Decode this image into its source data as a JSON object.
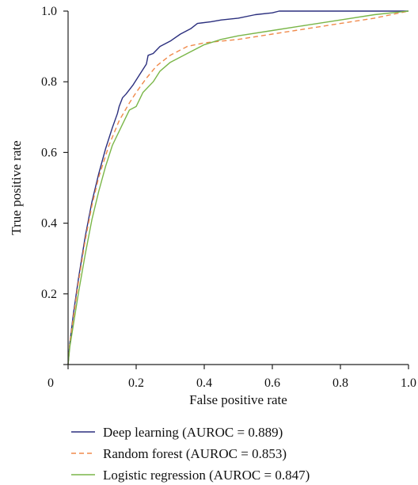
{
  "chart_data": {
    "type": "line",
    "title": "",
    "xlabel": "False positive rate",
    "ylabel": "True positive rate",
    "xlim": [
      0,
      1
    ],
    "ylim": [
      0,
      1
    ],
    "x_ticks": [
      0,
      0.2,
      0.4,
      0.6,
      0.8,
      1.0
    ],
    "x_tick_labels": [
      "0",
      "0.2",
      "0.4",
      "0.6",
      "0.8",
      "1.0"
    ],
    "y_ticks": [
      0.2,
      0.4,
      0.6,
      0.8,
      1.0
    ],
    "y_tick_labels": [
      "0.2",
      "0.4",
      "0.6",
      "0.8",
      "1.0"
    ],
    "grid": false,
    "legend_position": "bottom",
    "series": [
      {
        "name": "Deep learning (AUROC = 0.889)",
        "color": "#2b2f7e",
        "style": "solid",
        "points": [
          [
            0,
            0
          ],
          [
            0.005,
            0.06
          ],
          [
            0.015,
            0.14
          ],
          [
            0.03,
            0.24
          ],
          [
            0.05,
            0.36
          ],
          [
            0.07,
            0.46
          ],
          [
            0.09,
            0.54
          ],
          [
            0.11,
            0.61
          ],
          [
            0.13,
            0.67
          ],
          [
            0.145,
            0.71
          ],
          [
            0.15,
            0.73
          ],
          [
            0.16,
            0.755
          ],
          [
            0.17,
            0.765
          ],
          [
            0.19,
            0.79
          ],
          [
            0.21,
            0.82
          ],
          [
            0.23,
            0.85
          ],
          [
            0.235,
            0.875
          ],
          [
            0.25,
            0.88
          ],
          [
            0.27,
            0.9
          ],
          [
            0.3,
            0.915
          ],
          [
            0.33,
            0.935
          ],
          [
            0.36,
            0.95
          ],
          [
            0.38,
            0.965
          ],
          [
            0.42,
            0.97
          ],
          [
            0.45,
            0.975
          ],
          [
            0.5,
            0.98
          ],
          [
            0.55,
            0.99
          ],
          [
            0.6,
            0.995
          ],
          [
            0.62,
            1.0
          ],
          [
            0.8,
            1.0
          ],
          [
            1.0,
            1.0
          ]
        ]
      },
      {
        "name": "Random forest (AUROC = 0.853)",
        "color": "#f08a4b",
        "style": "dashed",
        "points": [
          [
            0,
            0
          ],
          [
            0.005,
            0.06
          ],
          [
            0.015,
            0.13
          ],
          [
            0.03,
            0.23
          ],
          [
            0.05,
            0.35
          ],
          [
            0.07,
            0.45
          ],
          [
            0.09,
            0.53
          ],
          [
            0.12,
            0.62
          ],
          [
            0.15,
            0.69
          ],
          [
            0.18,
            0.74
          ],
          [
            0.2,
            0.77
          ],
          [
            0.23,
            0.81
          ],
          [
            0.26,
            0.845
          ],
          [
            0.3,
            0.875
          ],
          [
            0.35,
            0.9
          ],
          [
            0.4,
            0.91
          ],
          [
            0.5,
            0.92
          ],
          [
            0.6,
            0.935
          ],
          [
            0.7,
            0.95
          ],
          [
            0.8,
            0.965
          ],
          [
            0.9,
            0.98
          ],
          [
            1.0,
            1.0
          ]
        ]
      },
      {
        "name": "Logistic regression (AUROC = 0.847)",
        "color": "#7ab648",
        "style": "solid",
        "points": [
          [
            0,
            0
          ],
          [
            0.005,
            0.05
          ],
          [
            0.015,
            0.11
          ],
          [
            0.03,
            0.2
          ],
          [
            0.05,
            0.31
          ],
          [
            0.07,
            0.41
          ],
          [
            0.09,
            0.49
          ],
          [
            0.11,
            0.56
          ],
          [
            0.13,
            0.62
          ],
          [
            0.16,
            0.68
          ],
          [
            0.18,
            0.72
          ],
          [
            0.2,
            0.73
          ],
          [
            0.22,
            0.77
          ],
          [
            0.25,
            0.8
          ],
          [
            0.27,
            0.83
          ],
          [
            0.3,
            0.855
          ],
          [
            0.35,
            0.88
          ],
          [
            0.4,
            0.905
          ],
          [
            0.45,
            0.92
          ],
          [
            0.5,
            0.93
          ],
          [
            0.6,
            0.945
          ],
          [
            0.7,
            0.96
          ],
          [
            0.8,
            0.975
          ],
          [
            0.9,
            0.99
          ],
          [
            1.0,
            1.0
          ]
        ]
      }
    ]
  }
}
